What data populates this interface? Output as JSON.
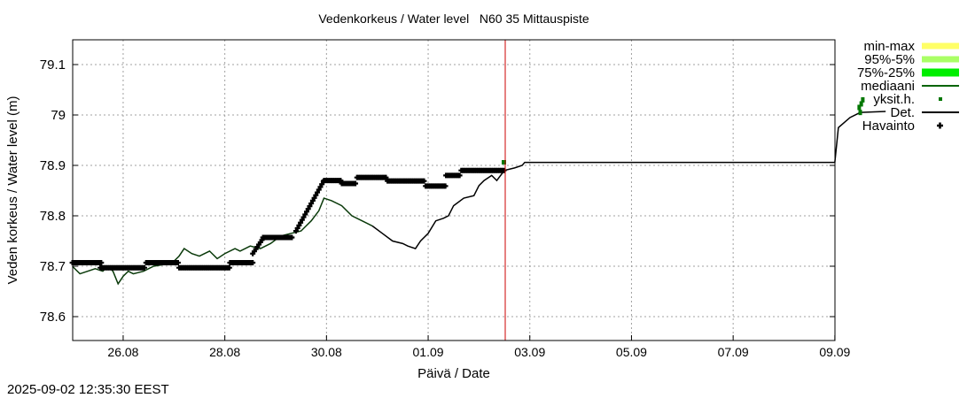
{
  "chart_data": {
    "type": "line",
    "title": "Vedenkorkeus / Water level   N60 35 Mittauspiste",
    "xlabel": "Päivä / Date",
    "ylabel": "Veden korkeus / Water level (m)",
    "timestamp": "2025-09-02 12:35:30 EEST",
    "x_ticks": [
      "26.08",
      "28.08",
      "30.08",
      "01.09",
      "03.09",
      "05.09",
      "07.09",
      "09.09"
    ],
    "y_ticks": [
      "78.6",
      "78.7",
      "78.8",
      "78.9",
      "79",
      "79.1"
    ],
    "ylim": [
      78.55,
      79.15
    ],
    "grid": true,
    "now_marker": "02.09 12:35",
    "legend": [
      {
        "label": "min-max",
        "color": "#ffff66",
        "kind": "band"
      },
      {
        "label": "95%-5%",
        "color": "#aaff66",
        "kind": "band"
      },
      {
        "label": "75%-25%",
        "color": "#00ee00",
        "kind": "band"
      },
      {
        "label": "mediaani",
        "color": "#006400",
        "kind": "line"
      },
      {
        "label": "yksit.h.",
        "color": "#007700",
        "kind": "point"
      },
      {
        "label": "Det.",
        "color": "#000000",
        "kind": "line"
      },
      {
        "label": "Havainto",
        "color": "#000000",
        "kind": "cross"
      }
    ],
    "series": [
      {
        "name": "Havainto",
        "x_days_from_25.08": [
          0,
          0.6,
          0.7,
          1.4,
          1.5,
          2.0,
          2.1,
          2.9,
          3.0,
          3.5,
          3.6,
          3.8,
          4.1,
          4.4,
          4.5,
          4.7,
          4.9,
          5.0,
          5.2,
          5.4,
          5.5,
          5.8,
          6.3,
          6.5,
          6.9,
          7.0,
          7.3,
          7.4,
          7.6,
          7.8,
          8.0,
          8.5
        ],
        "values": [
          78.71,
          78.71,
          78.7,
          78.7,
          78.71,
          78.71,
          78.7,
          78.7,
          78.71,
          78.71,
          78.74,
          78.76,
          78.76,
          78.76,
          78.8,
          78.85,
          78.87,
          78.87,
          78.86,
          78.86,
          78.87,
          78.88,
          78.87,
          78.87,
          78.87,
          78.86,
          78.86,
          78.88,
          78.89,
          78.89,
          78.89,
          78.89
        ]
      },
      {
        "name": "Det.",
        "x_days_from_25.08": [
          0,
          2.0,
          3.0,
          3.5,
          4.5,
          4.7,
          4.9,
          5.3,
          5.6,
          6.0,
          6.1,
          6.3,
          6.5,
          6.7,
          7.0,
          7.2,
          7.4,
          7.6,
          7.8,
          8.0,
          8.5,
          15.0,
          15.1,
          15.3,
          15.5,
          16.0
        ],
        "values": [
          78.7,
          78.7,
          78.72,
          78.74,
          78.76,
          78.8,
          78.85,
          78.82,
          78.78,
          78.74,
          78.74,
          78.73,
          78.76,
          78.79,
          78.81,
          78.83,
          78.86,
          78.87,
          78.87,
          78.88,
          78.9,
          78.905,
          78.975,
          78.99,
          79.0,
          79.005
        ]
      },
      {
        "name": "yksit.h.",
        "x_days_from_25.08": [
          15.5,
          15.55
        ],
        "values": [
          79.02,
          79.03
        ]
      }
    ]
  }
}
